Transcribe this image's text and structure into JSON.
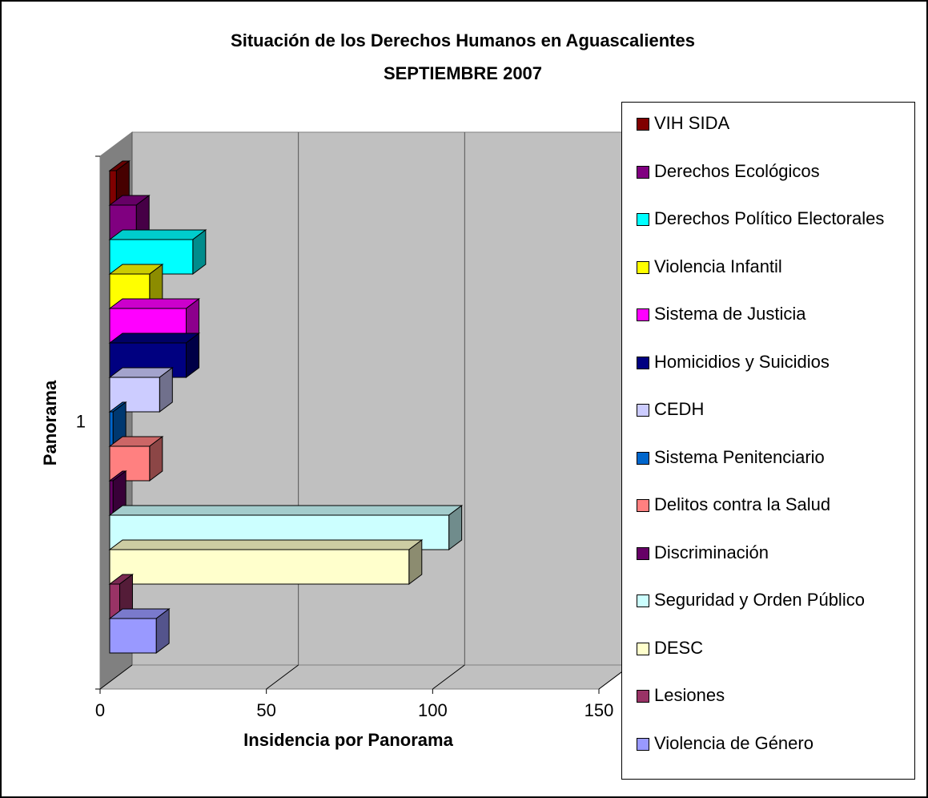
{
  "chart_data": {
    "type": "bar3d_horizontal",
    "title": "Situación de los Derechos Humanos en Aguascalientes",
    "subtitle": "SEPTIEMBRE 2007",
    "x_label": "Insidencia por Panorama",
    "y_label": "Panorama",
    "categories": [
      "1"
    ],
    "xlim": [
      0,
      150
    ],
    "xticks": [
      0,
      50,
      100,
      150
    ],
    "grid": true,
    "legend": "right",
    "series": [
      {
        "name": "VIH SIDA",
        "color": "#800000",
        "values": [
          2
        ]
      },
      {
        "name": "Derechos Ecológicos",
        "color": "#800080",
        "values": [
          8
        ]
      },
      {
        "name": "Derechos Político Electorales",
        "color": "#00ffff",
        "values": [
          25
        ]
      },
      {
        "name": "Violencia Infantil",
        "color": "#ffff00",
        "values": [
          12
        ]
      },
      {
        "name": "Sistema de Justicia",
        "color": "#ff00ff",
        "values": [
          23
        ]
      },
      {
        "name": "Homicidios y Suicidios",
        "color": "#000080",
        "values": [
          23
        ]
      },
      {
        "name": "CEDH",
        "color": "#ccccff",
        "values": [
          15
        ]
      },
      {
        "name": "Sistema Penitenciario",
        "color": "#0066cc",
        "values": [
          1
        ]
      },
      {
        "name": "Delitos contra la Salud",
        "color": "#ff8080",
        "values": [
          12
        ]
      },
      {
        "name": "Discriminación",
        "color": "#660066",
        "values": [
          1
        ]
      },
      {
        "name": "Seguridad y Orden Público",
        "color": "#ccffff",
        "values": [
          102
        ]
      },
      {
        "name": "DESC",
        "color": "#ffffcc",
        "values": [
          90
        ]
      },
      {
        "name": "Lesiones",
        "color": "#993366",
        "values": [
          3
        ]
      },
      {
        "name": "Violencia de Género",
        "color": "#9999ff",
        "values": [
          14
        ]
      }
    ]
  }
}
